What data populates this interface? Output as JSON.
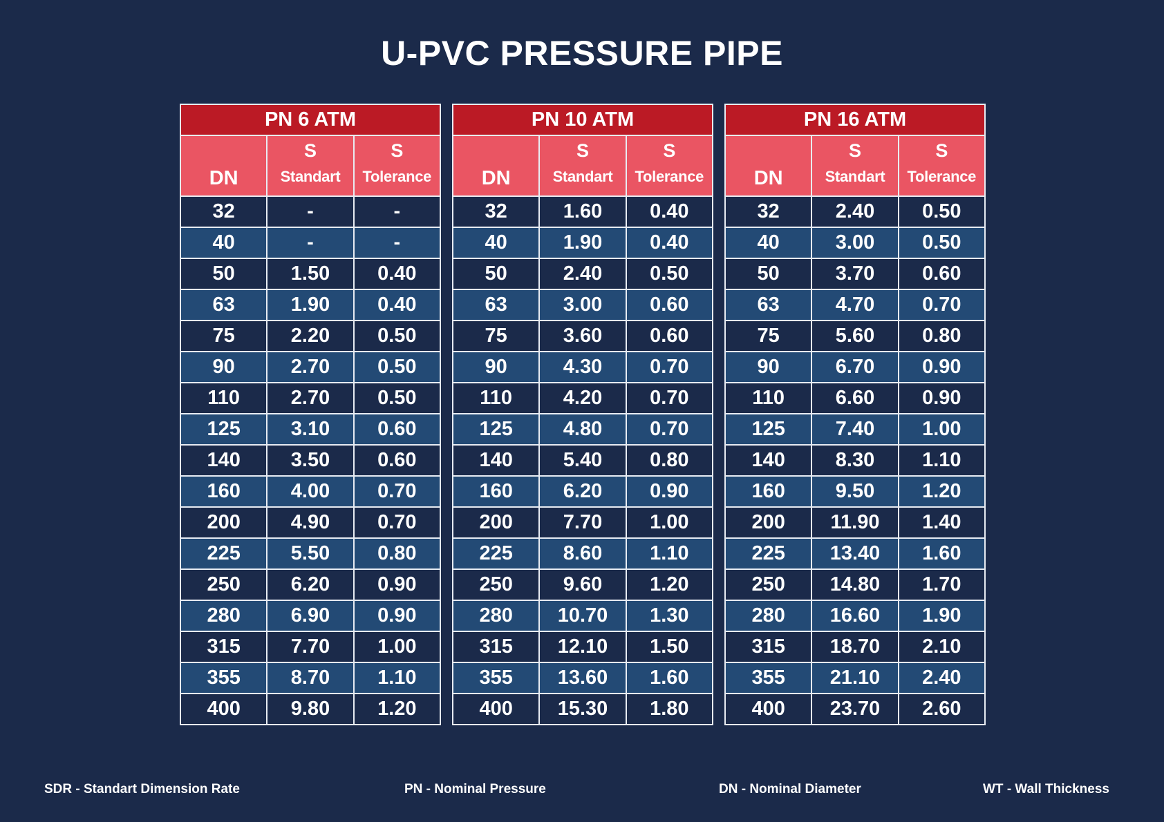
{
  "title": "U-PVC PRESSURE PIPE",
  "column_labels": {
    "dn": "DN",
    "s": "S",
    "standart": "Standart",
    "tolerance": "Tolerance"
  },
  "dn_values": [
    "32",
    "40",
    "50",
    "63",
    "75",
    "90",
    "110",
    "125",
    "140",
    "160",
    "200",
    "225",
    "250",
    "280",
    "315",
    "355",
    "400"
  ],
  "tables": [
    {
      "heading": "PN 6 ATM",
      "standart": [
        "-",
        "-",
        "1.50",
        "1.90",
        "2.20",
        "2.70",
        "2.70",
        "3.10",
        "3.50",
        "4.00",
        "4.90",
        "5.50",
        "6.20",
        "6.90",
        "7.70",
        "8.70",
        "9.80"
      ],
      "tolerance": [
        "-",
        "-",
        "0.40",
        "0.40",
        "0.50",
        "0.50",
        "0.50",
        "0.60",
        "0.60",
        "0.70",
        "0.70",
        "0.80",
        "0.90",
        "0.90",
        "1.00",
        "1.10",
        "1.20"
      ]
    },
    {
      "heading": "PN 10 ATM",
      "standart": [
        "1.60",
        "1.90",
        "2.40",
        "3.00",
        "3.60",
        "4.30",
        "4.20",
        "4.80",
        "5.40",
        "6.20",
        "7.70",
        "8.60",
        "9.60",
        "10.70",
        "12.10",
        "13.60",
        "15.30"
      ],
      "tolerance": [
        "0.40",
        "0.40",
        "0.50",
        "0.60",
        "0.60",
        "0.70",
        "0.70",
        "0.70",
        "0.80",
        "0.90",
        "1.00",
        "1.10",
        "1.20",
        "1.30",
        "1.50",
        "1.60",
        "1.80"
      ]
    },
    {
      "heading": "PN 16 ATM",
      "standart": [
        "2.40",
        "3.00",
        "3.70",
        "4.70",
        "5.60",
        "6.70",
        "6.60",
        "7.40",
        "8.30",
        "9.50",
        "11.90",
        "13.40",
        "14.80",
        "16.60",
        "18.70",
        "21.10",
        "23.70"
      ],
      "tolerance": [
        "0.50",
        "0.50",
        "0.60",
        "0.70",
        "0.80",
        "0.90",
        "0.90",
        "1.00",
        "1.10",
        "1.20",
        "1.40",
        "1.60",
        "1.70",
        "1.90",
        "2.10",
        "2.40",
        "2.60"
      ]
    }
  ],
  "legend": [
    "SDR - Standart Dimension Rate",
    "PN - Nominal Pressure",
    "DN - Nominal Diameter",
    "WT - Wall Thickness"
  ],
  "colors": {
    "background": "#1b2a4a",
    "header_red": "#bb1a25",
    "subheader_pink": "#ea5563",
    "row_dark": "#1b2a4a",
    "row_light": "#234a75"
  }
}
